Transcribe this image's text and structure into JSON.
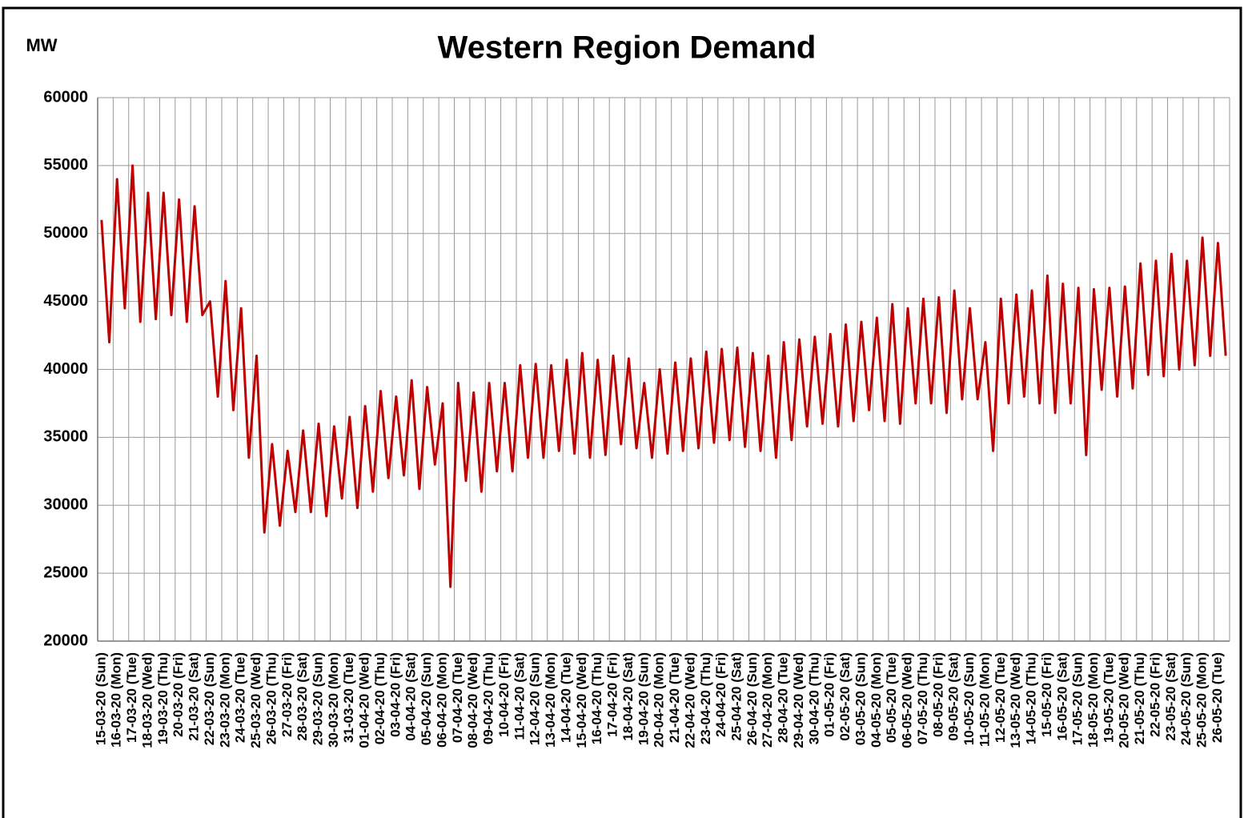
{
  "chart_data": {
    "type": "line",
    "title": "Western Region Demand",
    "y_label": "MW",
    "categories": [
      "15-03-20 (Sun)",
      null,
      "16-03-20 (Mon)",
      null,
      "17-03-20 (Tue)",
      null,
      "18-03-20 (Wed)",
      null,
      "19-03-20 (Thu)",
      null,
      "20-03-20 (Fri)",
      null,
      "21-03-20 (Sat)",
      null,
      "22-03-20 (Sun)",
      null,
      "23-03-20 (Mon)",
      null,
      "24-03-20 (Tue)",
      null,
      "25-03-20 (Wed)",
      null,
      "26-03-20 (Thu)",
      null,
      "27-03-20 (Fri)",
      null,
      "28-03-20 (Sat)",
      null,
      "29-03-20 (Sun)",
      null,
      "30-03-20 (Mon)",
      null,
      "31-03-20 (Tue)",
      null,
      "01-04-20 (Wed)",
      null,
      "02-04-20 (Thu)",
      null,
      "03-04-20 (Fri)",
      null,
      "04-04-20 (Sat)",
      null,
      "05-04-20 (Sun)",
      null,
      "06-04-20 (Mon)",
      null,
      "07-04-20 (Tue)",
      null,
      "08-04-20 (Wed)",
      null,
      "09-04-20 (Thu)",
      null,
      "10-04-20 (Fri)",
      null,
      "11-04-20 (Sat)",
      null,
      "12-04-20 (Sun)",
      null,
      "13-04-20 (Mon)",
      null,
      "14-04-20 (Tue)",
      null,
      "15-04-20 (Wed)",
      null,
      "16-04-20 (Thu)",
      null,
      "17-04-20 (Fri)",
      null,
      "18-04-20 (Sat)",
      null,
      "19-04-20 (Sun)",
      null,
      "20-04-20 (Mon)",
      null,
      "21-04-20 (Tue)",
      null,
      "22-04-20 (Wed)",
      null,
      "23-04-20 (Thu)",
      null,
      "24-04-20 (Fri)",
      null,
      "25-04-20 (Sat)",
      null,
      "26-04-20 (Sun)",
      null,
      "27-04-20 (Mon)",
      null,
      "28-04-20 (Tue)",
      null,
      "29-04-20 (Wed)",
      null,
      "30-04-20 (Thu)",
      null,
      "01-05-20 (Fri)",
      null,
      "02-05-20 (Sat)",
      null,
      "03-05-20 (Sun)",
      null,
      "04-05-20 (Mon)",
      null,
      "05-05-20 (Tue)",
      null,
      "06-05-20 (Wed)",
      null,
      "07-05-20 (Thu)",
      null,
      "08-05-20 (Fri)",
      null,
      "09-05-20 (Sat)",
      null,
      "10-05-20 (Sun)",
      null,
      "11-05-20 (Mon)",
      null,
      "12-05-20 (Tue)",
      null,
      "13-05-20 (Wed)",
      null,
      "14-05-20 (Thu)",
      null,
      "15-05-20 (Fri)",
      null,
      "16-05-20 (Sat)",
      null,
      "17-05-20 (Sun)",
      null,
      "18-05-20 (Mon)",
      null,
      "19-05-20 (Tue)",
      null,
      "20-05-20 (Wed)",
      null,
      "21-05-20 (Thu)",
      null,
      "22-05-20 (Fri)",
      null,
      "23-05-20 (Sat)",
      null,
      "24-05-20 (Sun)",
      null,
      "25-05-20 (Mon)",
      null,
      "26-05-20 (Tue)",
      null
    ],
    "series": [
      {
        "name": "Western Region Demand",
        "color": "#c00000",
        "values": [
          51000,
          42000,
          54000,
          44500,
          55000,
          43500,
          53000,
          43700,
          53000,
          44000,
          52500,
          43500,
          52000,
          44000,
          45000,
          38000,
          46500,
          37000,
          44500,
          33500,
          41000,
          28000,
          34500,
          28500,
          34000,
          29500,
          35500,
          29500,
          36000,
          29200,
          35800,
          30500,
          36500,
          29800,
          37300,
          31000,
          38400,
          32000,
          38000,
          32200,
          39200,
          31200,
          38700,
          33000,
          37500,
          24000,
          39000,
          31800,
          38300,
          31000,
          39000,
          32500,
          39000,
          32500,
          40300,
          33500,
          40400,
          33500,
          40300,
          34000,
          40700,
          33800,
          41200,
          33500,
          40700,
          33700,
          41000,
          34500,
          40800,
          34200,
          39000,
          33500,
          40000,
          33800,
          40500,
          34000,
          40800,
          34200,
          41300,
          34600,
          41500,
          34800,
          41600,
          34300,
          41200,
          34000,
          41000,
          33500,
          42000,
          34800,
          42200,
          35800,
          42400,
          36000,
          42600,
          35800,
          43300,
          36200,
          43500,
          37000,
          43800,
          36200,
          44800,
          36000,
          44500,
          37500,
          45200,
          37500,
          45300,
          36800,
          45800,
          37800,
          44500,
          37800,
          42000,
          34000,
          45200,
          37500,
          45500,
          38000,
          45800,
          37500,
          46900,
          36800,
          46300,
          37500,
          46000,
          33700,
          45900,
          38500,
          46000,
          38000,
          46100,
          38600,
          47800,
          39600,
          48000,
          39500,
          48500,
          40000,
          48000,
          40300,
          49700,
          41000,
          49300,
          41000
        ]
      }
    ],
    "ylim": [
      20000,
      60000
    ],
    "yticks": [
      20000,
      25000,
      30000,
      35000,
      40000,
      45000,
      50000,
      55000,
      60000
    ],
    "grid": true
  }
}
